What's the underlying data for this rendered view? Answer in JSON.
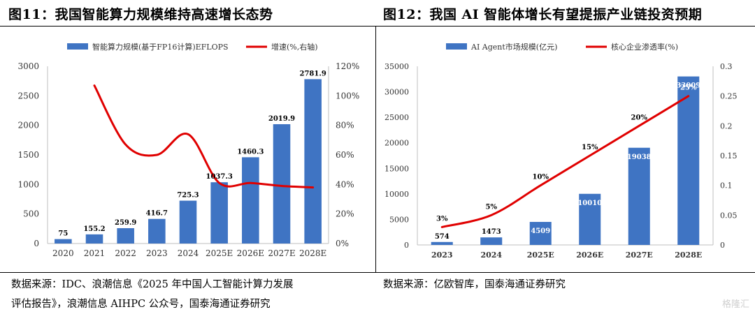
{
  "left": {
    "title": "图11：我国智能算力规模维持高速增长态势",
    "source_line1": "数据来源：IDC、浪潮信息《2025 年中国人工智能计算力发展",
    "source_line2": "评估报告》，浪潮信息 AIHPC 公众号，国泰海通证券研究"
  },
  "right": {
    "title": "图12：我国 AI 智能体增长有望提振产业链投资预期",
    "source": "数据来源：亿欧智库，国泰海通证券研究"
  },
  "watermark": "格隆汇",
  "colors": {
    "bar": "#3f74c3",
    "line": "#e00000",
    "axis": "#bfbfbf"
  },
  "chart_data": [
    {
      "type": "bar",
      "categories": [
        "2020",
        "2021",
        "2022",
        "2023",
        "2024",
        "2025E",
        "2026E",
        "2027E",
        "2028E"
      ],
      "series": [
        {
          "name": "智能算力规模(基于FP16计算)EFLOPS",
          "type": "bar",
          "axis": "left",
          "values": [
            75,
            155.2,
            259.9,
            416.7,
            725.3,
            1037.3,
            1460.3,
            2019.9,
            2781.9
          ],
          "labels": [
            "75",
            "155.2",
            "259.9",
            "416.7",
            "725.3",
            "1037.3",
            "1460.3",
            "2019.9",
            "2781.9"
          ]
        },
        {
          "name": "增速(%,右轴)",
          "type": "line",
          "axis": "right",
          "values": [
            null,
            107,
            67,
            60,
            74,
            41,
            41,
            39,
            38
          ]
        }
      ],
      "ylim": [
        0,
        3000
      ],
      "yticks": [
        "0",
        "500",
        "1000",
        "1500",
        "2000",
        "2500",
        "3000"
      ],
      "y2lim": [
        0,
        120
      ],
      "y2ticks": [
        "0%",
        "20%",
        "40%",
        "60%",
        "80%",
        "100%",
        "120%"
      ],
      "legend": "top"
    },
    {
      "type": "bar",
      "categories": [
        "2023",
        "2024",
        "2025E",
        "2026E",
        "2027E",
        "2028E"
      ],
      "series": [
        {
          "name": "AI Agent市场规模(亿元)",
          "type": "bar",
          "axis": "left",
          "values": [
            574,
            1473,
            4509,
            10010,
            19038,
            33009
          ],
          "labels": [
            "574",
            "1473",
            "4509",
            "10010",
            "19038",
            "33009"
          ]
        },
        {
          "name": "核心企业渗透率(%)",
          "type": "line",
          "axis": "right",
          "values": [
            0.03,
            0.05,
            0.1,
            0.15,
            0.2,
            0.25
          ],
          "labels": [
            "3%",
            "5%",
            "10%",
            "15%",
            "20%",
            "25%"
          ]
        }
      ],
      "ylim": [
        0,
        35000
      ],
      "yticks": [
        "0",
        "5000",
        "10000",
        "15000",
        "20000",
        "25000",
        "30000",
        "35000"
      ],
      "y2lim": [
        0,
        0.3
      ],
      "y2ticks": [
        "0",
        "0.05",
        "0.1",
        "0.15",
        "0.2",
        "0.25",
        "0.3"
      ],
      "legend": "top"
    }
  ]
}
